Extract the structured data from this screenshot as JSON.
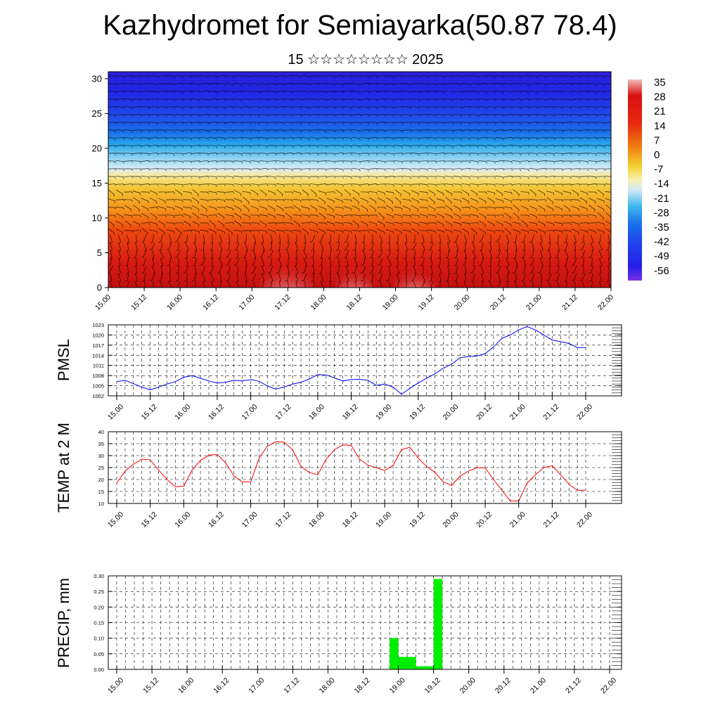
{
  "title": "Kazhydromet for Semiayarka(50.87 78.4)",
  "subtitle": "15 ☆☆☆☆☆☆☆☆ 2025",
  "chart_data": [
    {
      "type": "heatmap",
      "x_ticks": [
        "15.00",
        "15.12",
        "16.00",
        "16.12",
        "17.00",
        "17.12",
        "18.00",
        "18.12",
        "19.00",
        "19.12",
        "20.00",
        "20.12",
        "21.00",
        "21.12",
        "22.00"
      ],
      "y_ticks": [
        0,
        5,
        10,
        15,
        20,
        25,
        30
      ],
      "ylim": [
        0,
        31
      ],
      "colorbar_labels": [
        "35",
        "28",
        "21",
        "14",
        "7",
        "0",
        "-7",
        "-14",
        "-21",
        "-28",
        "-35",
        "-42",
        "-49",
        "-56"
      ],
      "colors": {
        "hot": "#f4b7b7",
        "red": "#cf1010",
        "orange": "#f07a10",
        "yellow": "#f4d03a",
        "pale": "#e6f1f6",
        "cyan": "#40b8f0",
        "blue": "#2030e8",
        "dark_blue": "#1f0fd0",
        "violet": "#7a2ee6"
      },
      "note_overlay": "wind barbs"
    },
    {
      "type": "line",
      "ylabel": "PMSL",
      "x_ticks": [
        "15.00",
        "15.12",
        "16.00",
        "16.12",
        "17.00",
        "17.12",
        "18.00",
        "18.12",
        "19.00",
        "19.12",
        "20.00",
        "20.12",
        "21.00",
        "21.12",
        "22.00"
      ],
      "y_ticks": [
        1002,
        1005,
        1008,
        1011,
        1014,
        1017,
        1020,
        1023
      ],
      "ylim": [
        1002,
        1023
      ],
      "color": "#0000ff",
      "x": [
        0,
        1,
        2,
        3,
        4,
        5,
        6,
        7,
        8,
        9,
        10,
        11,
        12,
        13,
        14,
        15,
        16,
        17,
        18,
        19,
        20,
        21,
        22,
        23,
        24,
        25,
        26,
        27,
        28,
        29,
        30,
        31,
        32,
        33,
        34,
        35,
        36,
        37,
        38,
        39,
        40,
        41,
        42,
        43,
        44,
        45,
        46,
        47,
        48,
        49,
        50,
        51,
        52,
        53,
        54,
        55,
        56
      ],
      "values": [
        1006.2,
        1006.6,
        1005.6,
        1004.6,
        1003.8,
        1004.6,
        1005.5,
        1006.2,
        1007.5,
        1008.0,
        1007.2,
        1006.4,
        1005.8,
        1006.0,
        1006.6,
        1006.4,
        1006.8,
        1006.3,
        1004.9,
        1004.0,
        1004.6,
        1005.5,
        1006.0,
        1007.0,
        1008.3,
        1008.2,
        1007.3,
        1006.4,
        1006.8,
        1006.9,
        1006.6,
        1005.1,
        1005.5,
        1004.6,
        1002.5,
        1004.2,
        1005.8,
        1007.2,
        1008.5,
        1010.2,
        1011.4,
        1013.3,
        1013.6,
        1013.8,
        1014.5,
        1016.5,
        1019.0,
        1020.0,
        1021.5,
        1022.5,
        1021.5,
        1020.0,
        1018.5,
        1018.0,
        1017.5,
        1016.3,
        1016.3
      ]
    },
    {
      "type": "line",
      "ylabel": "TEMP at 2 M",
      "x_ticks": [
        "15.00",
        "15.12",
        "16.00",
        "16.12",
        "17.00",
        "17.12",
        "18.00",
        "18.12",
        "19.00",
        "19.12",
        "20.00",
        "20.12",
        "21.00",
        "21.12",
        "22.00"
      ],
      "y_ticks": [
        10,
        15,
        20,
        25,
        30,
        35,
        40
      ],
      "ylim": [
        10,
        40
      ],
      "color": "#ff0000",
      "x": [
        0,
        1,
        2,
        3,
        4,
        5,
        6,
        7,
        8,
        9,
        10,
        11,
        12,
        13,
        14,
        15,
        16,
        17,
        18,
        19,
        20,
        21,
        22,
        23,
        24,
        25,
        26,
        27,
        28,
        29,
        30,
        31,
        32,
        33,
        34,
        35,
        36,
        37,
        38,
        39,
        40,
        41,
        42,
        43,
        44,
        45,
        46,
        47,
        48,
        49,
        50,
        51,
        52,
        53,
        54,
        55,
        56
      ],
      "values": [
        18.5,
        23.5,
        26.5,
        28.5,
        28.3,
        24.0,
        20.0,
        17.0,
        17.2,
        24.0,
        28.0,
        30.2,
        30.5,
        27.0,
        21.5,
        19.0,
        19.0,
        29.0,
        34.0,
        35.8,
        35.6,
        32.5,
        25.5,
        23.0,
        22.0,
        28.5,
        32.5,
        34.5,
        34.3,
        28.5,
        26.0,
        25.0,
        23.8,
        26.0,
        32.5,
        33.5,
        29.0,
        25.5,
        23.0,
        19.0,
        17.5,
        21.5,
        23.5,
        25.0,
        24.8,
        20.0,
        15.5,
        11.0,
        11.0,
        18.5,
        22.0,
        25.0,
        25.8,
        22.0,
        18.0,
        15.5,
        15.5
      ]
    },
    {
      "type": "bar",
      "ylabel": "PRECIP, mm",
      "x_ticks": [
        "15.00",
        "15.12",
        "16.00",
        "16.12",
        "17.00",
        "17.12",
        "18.00",
        "18.12",
        "19.00",
        "19.12",
        "20.00",
        "20.12",
        "21.00",
        "21.12",
        "22.00"
      ],
      "y_ticks": [
        "0.00",
        "0.05",
        "0.10",
        "0.15",
        "0.20",
        "0.25",
        "0.30"
      ],
      "ylim": [
        0,
        0.3
      ],
      "color": "#00ee00",
      "bars": [
        {
          "x0": 31.0,
          "x1": 32.0,
          "value": 0.1
        },
        {
          "x0": 32.0,
          "x1": 34.0,
          "value": 0.04
        },
        {
          "x0": 34.0,
          "x1": 36.0,
          "value": 0.01
        },
        {
          "x0": 36.0,
          "x1": 37.0,
          "value": 0.29
        }
      ]
    }
  ]
}
